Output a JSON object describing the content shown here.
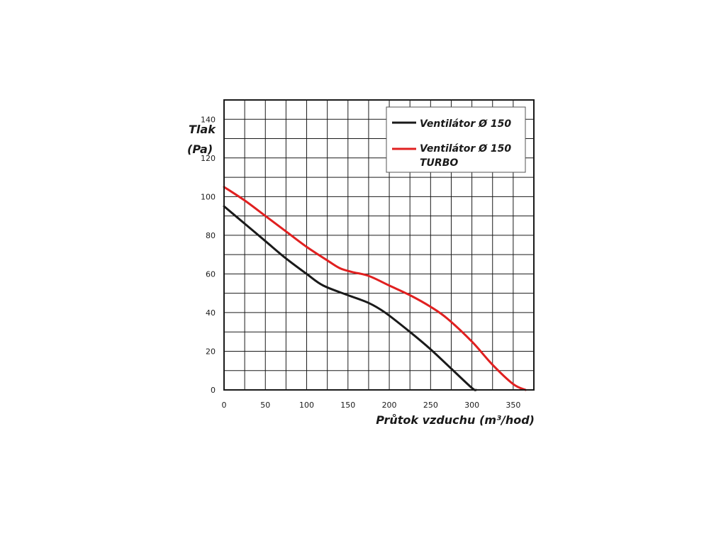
{
  "chart_data": {
    "type": "line",
    "xlabel": "Průtok vzduchu (m³/hod)",
    "ylabel_line1": "Tlak",
    "ylabel_line2": "(Pa)",
    "xlim": [
      0,
      375
    ],
    "ylim": [
      0,
      150
    ],
    "x_ticks": [
      0,
      50,
      100,
      150,
      200,
      250,
      300,
      350
    ],
    "y_ticks": [
      0,
      20,
      40,
      60,
      80,
      100,
      120,
      140
    ],
    "x_grid_step": 25,
    "y_grid_step": 10,
    "grid": true,
    "legend_position": "top-right",
    "series": [
      {
        "name": "Ventilátor Ø 150",
        "color": "#1a1a1a",
        "points": [
          [
            0,
            95
          ],
          [
            25,
            86
          ],
          [
            50,
            77
          ],
          [
            75,
            68
          ],
          [
            100,
            60
          ],
          [
            120,
            54
          ],
          [
            150,
            49
          ],
          [
            175,
            45
          ],
          [
            195,
            40
          ],
          [
            225,
            30
          ],
          [
            250,
            21
          ],
          [
            275,
            11
          ],
          [
            300,
            1
          ],
          [
            305,
            0
          ]
        ]
      },
      {
        "name": "Ventilátor Ø 150 TURBO",
        "legend_line1": "Ventilátor Ø 150",
        "legend_line2": "TURBO",
        "color": "#e02020",
        "points": [
          [
            0,
            105
          ],
          [
            25,
            98
          ],
          [
            50,
            90
          ],
          [
            75,
            82
          ],
          [
            100,
            74
          ],
          [
            125,
            67
          ],
          [
            140,
            63
          ],
          [
            155,
            61
          ],
          [
            175,
            59
          ],
          [
            200,
            54
          ],
          [
            225,
            49
          ],
          [
            250,
            43
          ],
          [
            270,
            37
          ],
          [
            300,
            25
          ],
          [
            325,
            13
          ],
          [
            350,
            3
          ],
          [
            365,
            0
          ]
        ]
      }
    ]
  }
}
